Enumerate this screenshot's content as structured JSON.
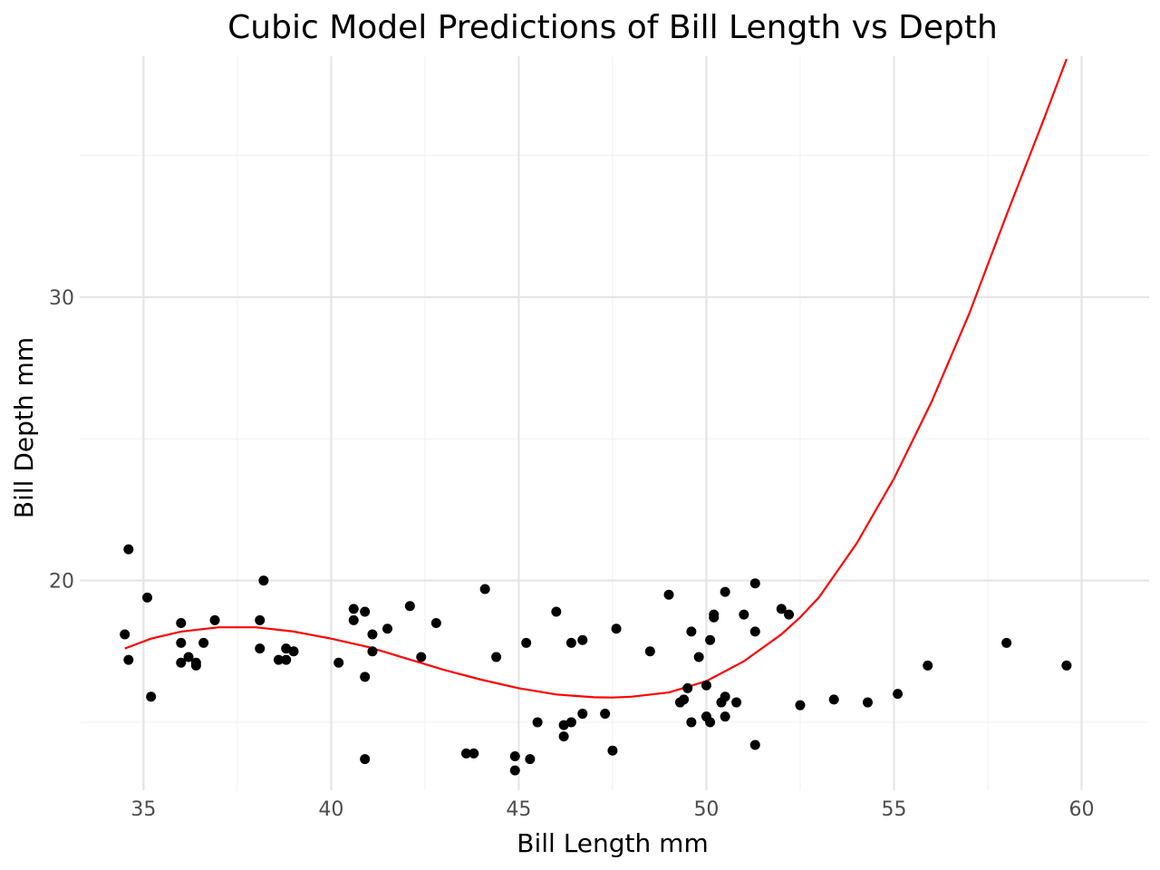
{
  "chart_data": {
    "type": "scatter",
    "title": "Cubic Model Predictions of Bill Length vs Depth",
    "xlabel": "Bill Length mm",
    "ylabel": "Bill Depth mm",
    "xlim": [
      33.3,
      61.8
    ],
    "ylim": [
      12.6,
      38.5
    ],
    "x_ticks": [
      35,
      40,
      45,
      50,
      55,
      60
    ],
    "x_tick_labels": [
      "35",
      "40",
      "45",
      "50",
      "55",
      "60"
    ],
    "x_minor_ticks": [
      37.5,
      42.5,
      47.5,
      52.5,
      57.5
    ],
    "y_ticks": [
      20,
      30
    ],
    "y_tick_labels": [
      "20",
      "30"
    ],
    "y_minor_ticks": [
      15,
      25,
      35
    ],
    "grid": true,
    "colors": {
      "points": "#000000",
      "fit_line": "#ff0000",
      "grid": "#e5e5e5"
    },
    "series": [
      {
        "type": "scatter",
        "points": [
          [
            34.5,
            18.1
          ],
          [
            34.6,
            17.2
          ],
          [
            34.6,
            21.1
          ],
          [
            35.1,
            19.4
          ],
          [
            35.2,
            15.9
          ],
          [
            36.0,
            18.5
          ],
          [
            36.0,
            17.8
          ],
          [
            36.0,
            17.1
          ],
          [
            36.2,
            17.3
          ],
          [
            36.4,
            17.1
          ],
          [
            36.4,
            17.0
          ],
          [
            36.6,
            17.8
          ],
          [
            36.9,
            18.6
          ],
          [
            38.1,
            18.6
          ],
          [
            38.1,
            17.6
          ],
          [
            38.2,
            20.0
          ],
          [
            38.6,
            17.2
          ],
          [
            38.8,
            17.6
          ],
          [
            38.8,
            17.2
          ],
          [
            39.0,
            17.5
          ],
          [
            40.2,
            17.1
          ],
          [
            40.6,
            19.0
          ],
          [
            40.6,
            18.6
          ],
          [
            40.9,
            18.9
          ],
          [
            40.9,
            16.6
          ],
          [
            40.9,
            13.7
          ],
          [
            41.1,
            18.1
          ],
          [
            41.1,
            17.5
          ],
          [
            41.5,
            18.3
          ],
          [
            42.1,
            19.1
          ],
          [
            42.4,
            17.3
          ],
          [
            42.8,
            18.5
          ],
          [
            43.6,
            13.9
          ],
          [
            43.8,
            13.9
          ],
          [
            44.1,
            19.7
          ],
          [
            44.4,
            17.3
          ],
          [
            44.9,
            13.8
          ],
          [
            44.9,
            13.3
          ],
          [
            45.2,
            17.8
          ],
          [
            45.3,
            13.7
          ],
          [
            45.5,
            15.0
          ],
          [
            46.0,
            18.9
          ],
          [
            46.2,
            14.9
          ],
          [
            46.2,
            14.5
          ],
          [
            46.4,
            15.0
          ],
          [
            46.4,
            17.8
          ],
          [
            46.7,
            15.3
          ],
          [
            46.7,
            17.9
          ],
          [
            47.3,
            15.3
          ],
          [
            47.5,
            14.0
          ],
          [
            47.6,
            18.3
          ],
          [
            48.5,
            17.5
          ],
          [
            49.0,
            19.5
          ],
          [
            49.3,
            15.7
          ],
          [
            49.4,
            15.8
          ],
          [
            49.5,
            16.2
          ],
          [
            49.6,
            15.0
          ],
          [
            49.6,
            18.2
          ],
          [
            49.8,
            17.3
          ],
          [
            50.0,
            15.2
          ],
          [
            50.0,
            16.3
          ],
          [
            50.1,
            15.0
          ],
          [
            50.1,
            17.9
          ],
          [
            50.2,
            18.7
          ],
          [
            50.2,
            18.8
          ],
          [
            50.4,
            15.7
          ],
          [
            50.5,
            15.9
          ],
          [
            50.5,
            19.6
          ],
          [
            50.5,
            15.2
          ],
          [
            50.8,
            15.7
          ],
          [
            51.0,
            18.8
          ],
          [
            51.3,
            14.2
          ],
          [
            51.3,
            18.2
          ],
          [
            51.3,
            19.9
          ],
          [
            52.0,
            19.0
          ],
          [
            52.2,
            18.8
          ],
          [
            52.5,
            15.6
          ],
          [
            53.4,
            15.8
          ],
          [
            54.3,
            15.7
          ],
          [
            55.1,
            16.0
          ],
          [
            55.9,
            17.0
          ],
          [
            58.0,
            17.8
          ],
          [
            59.6,
            17.0
          ]
        ]
      },
      {
        "type": "line",
        "x": [
          34.5,
          35.2,
          36.0,
          37.0,
          38.0,
          39.0,
          40.0,
          41.0,
          42.0,
          43.0,
          44.0,
          45.0,
          46.0,
          47.0,
          47.5,
          48.0,
          49.0,
          50.0,
          51.0,
          52.0,
          52.5,
          53.0,
          54.0,
          55.0,
          56.0,
          57.0,
          58.0,
          59.0,
          59.6
        ],
        "y": [
          17.6,
          17.95,
          18.2,
          18.35,
          18.35,
          18.2,
          17.95,
          17.65,
          17.25,
          16.85,
          16.5,
          16.2,
          15.98,
          15.88,
          15.87,
          15.9,
          16.05,
          16.45,
          17.15,
          18.1,
          18.7,
          19.4,
          21.3,
          23.6,
          26.3,
          29.4,
          32.9,
          36.3,
          38.4
        ]
      }
    ]
  }
}
